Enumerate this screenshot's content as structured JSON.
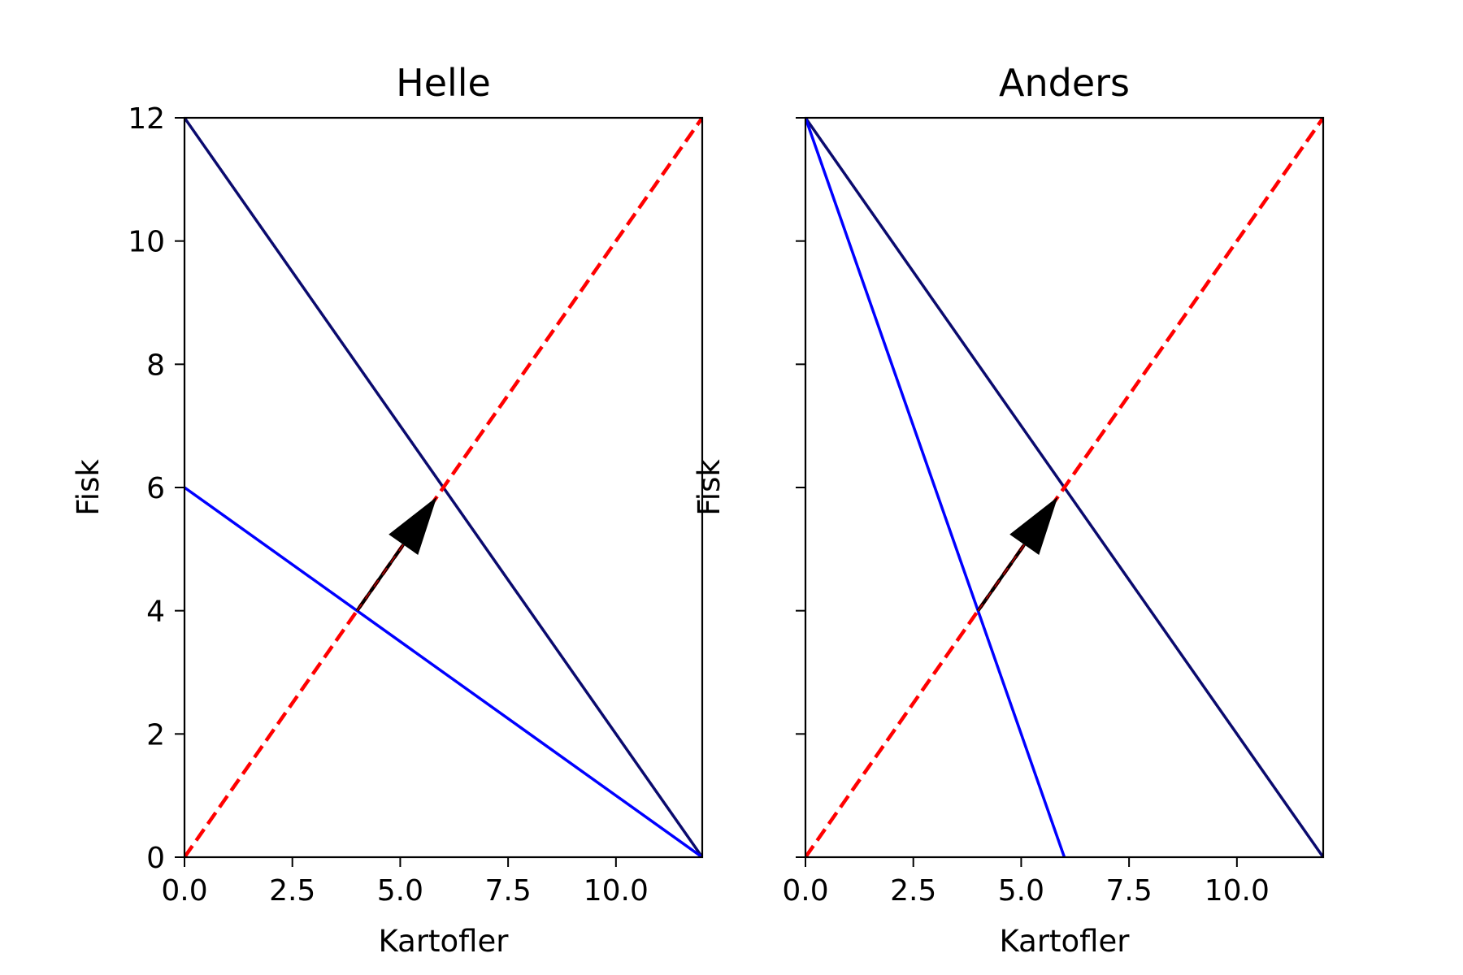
{
  "chart_data": [
    {
      "type": "line",
      "title": "Helle",
      "xlabel": "Kartofler",
      "ylabel": "Fisk",
      "xlim": [
        0,
        12
      ],
      "ylim": [
        0,
        12
      ],
      "xticks": [
        0,
        2.5,
        5,
        7.5,
        10
      ],
      "xtick_labels": [
        "0.0",
        "2.5",
        "5.0",
        "7.5",
        "10.0"
      ],
      "yticks": [
        0,
        2,
        4,
        6,
        8,
        10,
        12
      ],
      "ytick_labels": [
        "0",
        "2",
        "4",
        "6",
        "8",
        "10",
        "12"
      ],
      "grid": false,
      "series": [
        {
          "style": "solid",
          "color": "#0a0a6e",
          "x": [
            0,
            12
          ],
          "y": [
            12,
            0
          ]
        },
        {
          "style": "solid",
          "color": "#0000ff",
          "x": [
            0,
            12
          ],
          "y": [
            6,
            0
          ]
        },
        {
          "style": "dashed",
          "color": "#ff0000",
          "x": [
            0,
            12
          ],
          "y": [
            0,
            12
          ]
        }
      ],
      "arrow": {
        "color": "#000000",
        "from": [
          4,
          4
        ],
        "to": [
          5.85,
          5.85
        ]
      }
    },
    {
      "type": "line",
      "title": "Anders",
      "xlabel": "Kartofler",
      "ylabel": "Fisk",
      "xlim": [
        0,
        12
      ],
      "ylim": [
        0,
        12
      ],
      "xticks": [
        0,
        2.5,
        5,
        7.5,
        10
      ],
      "xtick_labels": [
        "0.0",
        "2.5",
        "5.0",
        "7.5",
        "10.0"
      ],
      "yticks": [
        0,
        2,
        4,
        6,
        8,
        10,
        12
      ],
      "ytick_labels": [],
      "grid": false,
      "series": [
        {
          "style": "solid",
          "color": "#0a0a6e",
          "x": [
            0,
            12
          ],
          "y": [
            12,
            0
          ]
        },
        {
          "style": "solid",
          "color": "#0000ff",
          "x": [
            0,
            6
          ],
          "y": [
            12,
            0
          ]
        },
        {
          "style": "dashed",
          "color": "#ff0000",
          "x": [
            0,
            12
          ],
          "y": [
            0,
            12
          ]
        }
      ],
      "arrow": {
        "color": "#000000",
        "from": [
          4,
          4
        ],
        "to": [
          5.85,
          5.85
        ]
      }
    }
  ]
}
